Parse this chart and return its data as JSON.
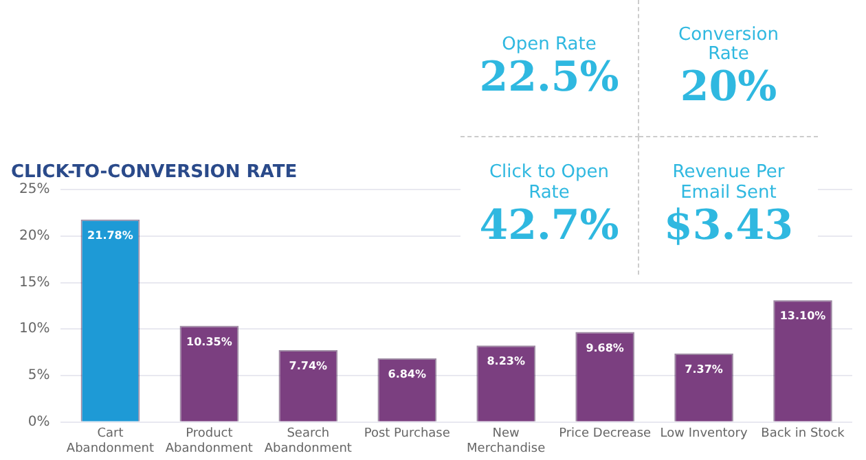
{
  "chart_data": [
    {
      "type": "bar",
      "title": "CLICK-TO-CONVERSION RATE",
      "categories": [
        "Cart Abandonment",
        "Product Abandonment",
        "Search Abandonment",
        "Post Purchase",
        "New Merchandise",
        "Price Decrease",
        "Low Inventory",
        "Back in Stock"
      ],
      "values": [
        21.78,
        10.35,
        7.74,
        6.84,
        8.23,
        9.68,
        7.37,
        13.1
      ],
      "colors": [
        "#1e9ad6",
        "#7b3f80",
        "#7b3f80",
        "#7b3f80",
        "#7b3f80",
        "#7b3f80",
        "#7b3f80",
        "#7b3f80"
      ],
      "value_labels": [
        "21.78%",
        "10.35%",
        "7.74%",
        "6.84%",
        "8.23%",
        "9.68%",
        "7.37%",
        "13.10%"
      ],
      "ylim": [
        0,
        25
      ],
      "yticks": [
        {
          "value": 0,
          "label": "0%"
        },
        {
          "value": 5,
          "label": "5%"
        },
        {
          "value": 10,
          "label": "10%"
        },
        {
          "value": 15,
          "label": "15%"
        },
        {
          "value": 20,
          "label": "20%"
        },
        {
          "value": 25,
          "label": "25%"
        }
      ],
      "grid": "y"
    },
    {
      "type": "other",
      "annotations": [
        "Open Rate",
        "22.5%",
        "Conversion Rate",
        "20%",
        "Click to Open Rate",
        "42.7%",
        "Revenue Per Email Sent",
        "$3.43"
      ]
    }
  ]
}
